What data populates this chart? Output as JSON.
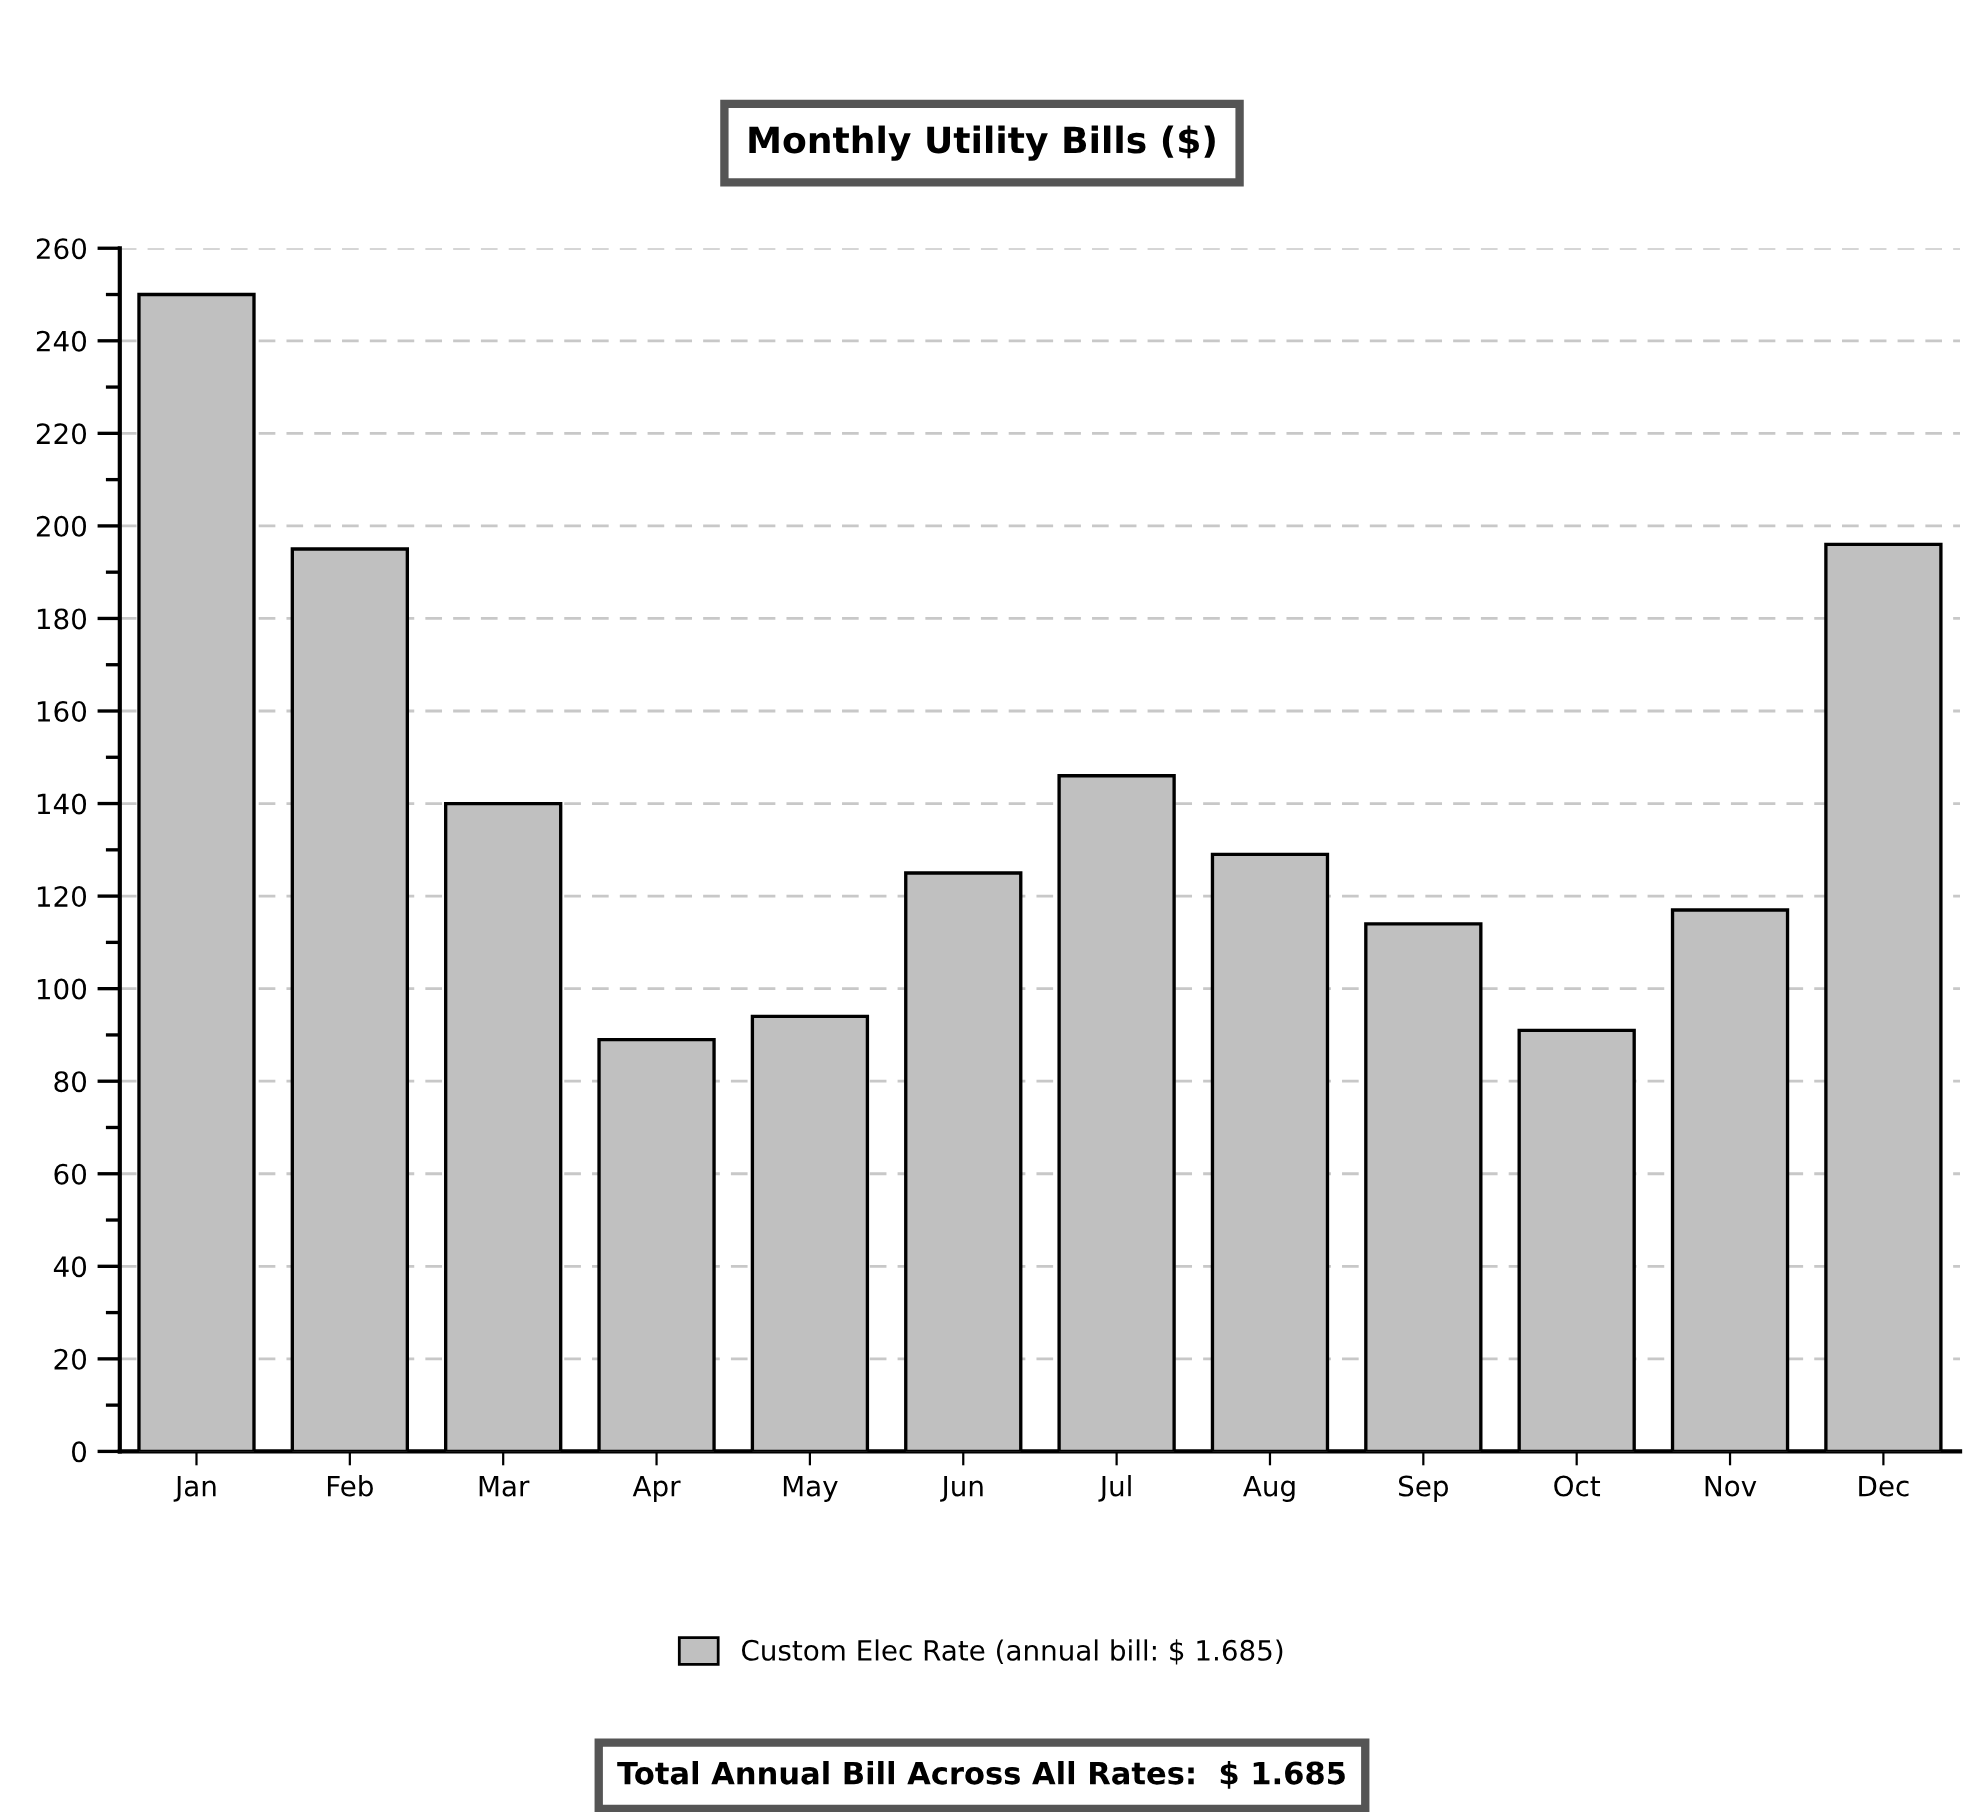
{
  "chart_data": {
    "type": "bar",
    "title": "Monthly Utility Bills ($)",
    "categories": [
      "Jan",
      "Feb",
      "Mar",
      "Apr",
      "May",
      "Jun",
      "Jul",
      "Aug",
      "Sep",
      "Oct",
      "Nov",
      "Dec"
    ],
    "series": [
      {
        "name": "Custom Elec Rate (annual bill: $ 1.685)",
        "color": "#c0c0c0",
        "values": [
          250,
          195,
          140,
          89,
          94,
          125,
          146,
          129,
          114,
          91,
          117,
          196
        ]
      }
    ],
    "ylim": [
      0,
      260
    ],
    "yticks": [
      0,
      20,
      40,
      60,
      80,
      100,
      120,
      140,
      160,
      180,
      200,
      220,
      240,
      260
    ],
    "grid": "y",
    "legend": "bottom",
    "annotations": [
      "Total Annual Bill Across All Rates:  $ 1.685"
    ]
  }
}
